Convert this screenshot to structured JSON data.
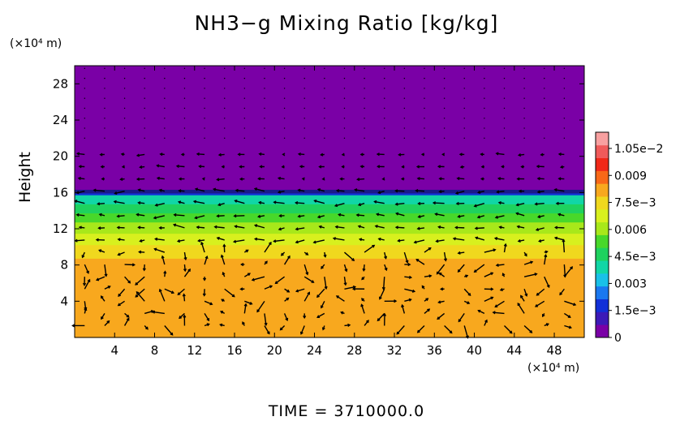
{
  "chart_data": {
    "type": "heatmap",
    "title": "NH3−g Mixing Ratio [kg/kg]",
    "ylabel": "Height",
    "y_unit": "(×10⁴ m)",
    "x_unit": "(×10⁴ m)",
    "footer": "TIME = 3710000.0",
    "xlim": [
      0,
      51
    ],
    "ylim": [
      0,
      30
    ],
    "x_ticks": [
      4,
      8,
      12,
      16,
      20,
      24,
      28,
      32,
      36,
      40,
      44,
      48
    ],
    "y_ticks": [
      4,
      8,
      12,
      16,
      20,
      24,
      28
    ],
    "colorbar": {
      "range": [
        0,
        0.0114
      ],
      "tick_values": [
        0,
        0.0015,
        0.003,
        0.0045,
        0.006,
        0.0075,
        0.009,
        0.0105
      ],
      "tick_labels": [
        "0",
        "1.5e−3",
        "0.003",
        "4.5e−3",
        "0.006",
        "7.5e−3",
        "0.009",
        "1.05e−2"
      ],
      "colors": [
        "#7a00a6",
        "#3c1ab8",
        "#1230d8",
        "#1a78f0",
        "#19c0e8",
        "#11d6a6",
        "#1ed25e",
        "#48d82a",
        "#a8e81a",
        "#d8f01e",
        "#f0d81e",
        "#f8a81e",
        "#f86818",
        "#f02818",
        "#f05a5a",
        "#f8a0a0"
      ]
    },
    "profile": [
      {
        "y": 0,
        "value": 0.008
      },
      {
        "y": 8.5,
        "value": 0.008
      },
      {
        "y": 10,
        "value": 0.0073
      },
      {
        "y": 12,
        "value": 0.0062
      },
      {
        "y": 13.5,
        "value": 0.0052
      },
      {
        "y": 14.5,
        "value": 0.0044
      },
      {
        "y": 15.6,
        "value": 0.004
      },
      {
        "y": 16.1,
        "value": 0.0
      },
      {
        "y": 30,
        "value": 0.0
      }
    ]
  }
}
